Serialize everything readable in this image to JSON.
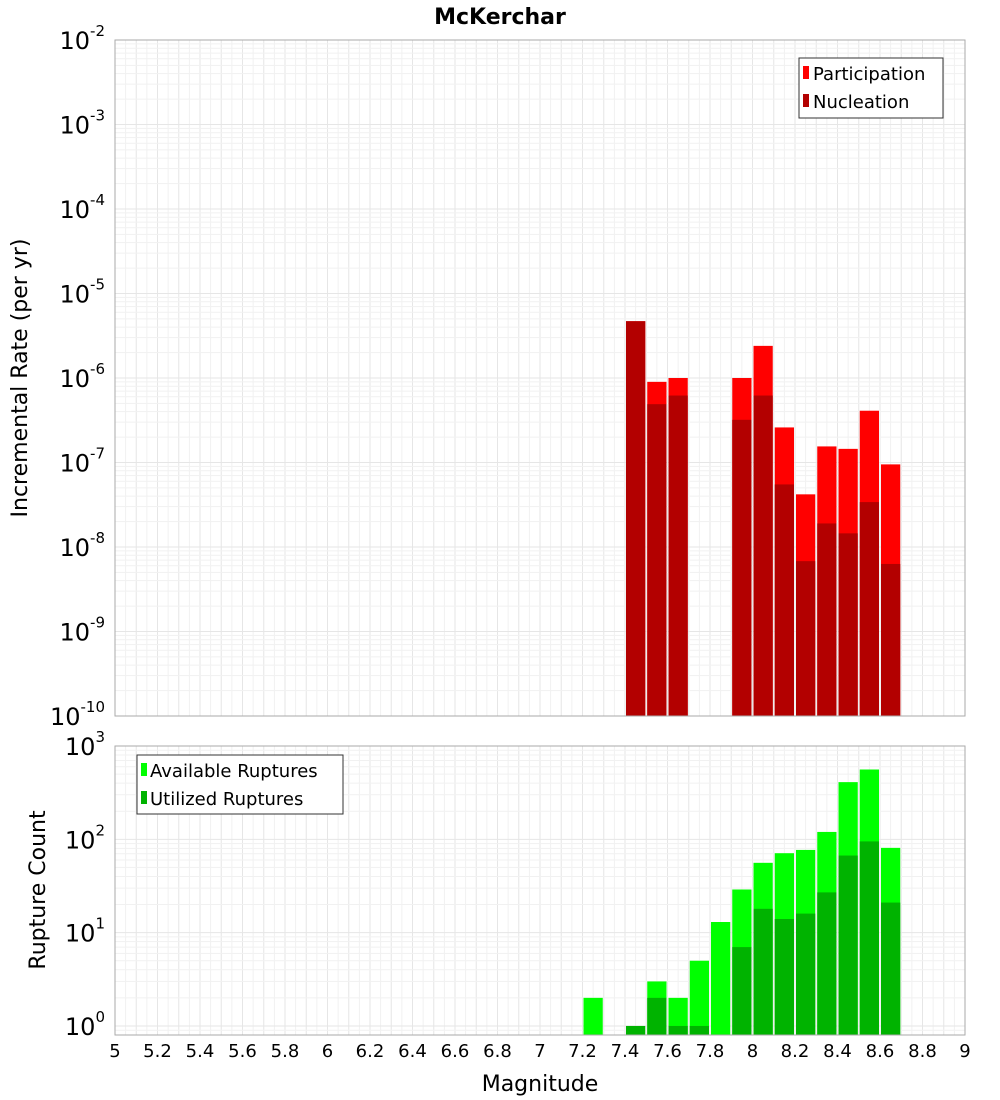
{
  "colors": {
    "participation": "#ff0000",
    "nucleation": "#b30000",
    "available": "#00ff00",
    "utilized": "#00b300"
  },
  "chart_data": [
    {
      "type": "bar",
      "title": "McKerchar",
      "xlabel": "",
      "ylabel": "Incremental Rate (per yr)",
      "yscale": "log",
      "xlim": [
        5,
        9
      ],
      "ylim": [
        1e-10,
        0.01
      ],
      "y_tick_exponents": [
        -10,
        -9,
        -8,
        -7,
        -6,
        -5,
        -4,
        -3,
        -2
      ],
      "grid": true,
      "legend_position": "top-right",
      "x": [
        7.45,
        7.55,
        7.65,
        7.95,
        8.05,
        8.15,
        8.25,
        8.35,
        8.45,
        8.55,
        8.65
      ],
      "series": [
        {
          "name": "Participation",
          "color_key": "participation",
          "values": [
            4.7e-06,
            9e-07,
            1e-06,
            1e-06,
            2.4e-06,
            2.6e-07,
            4.2e-08,
            1.55e-07,
            1.45e-07,
            4.1e-07,
            9.5e-08
          ]
        },
        {
          "name": "Nucleation",
          "color_key": "nucleation",
          "values": [
            4.7e-06,
            4.9e-07,
            6.2e-07,
            3.2e-07,
            6.2e-07,
            5.5e-08,
            6.8e-09,
            1.9e-08,
            1.45e-08,
            3.4e-08,
            6.3e-09
          ]
        }
      ]
    },
    {
      "type": "bar",
      "xlabel": "Magnitude",
      "ylabel": "Rupture Count",
      "yscale": "log",
      "xlim": [
        5,
        9
      ],
      "ylim": [
        0.8,
        1000
      ],
      "y_tick_exponents": [
        0,
        1,
        2,
        3
      ],
      "x_ticks": [
        "5",
        "5.2",
        "5.4",
        "5.6",
        "5.8",
        "6",
        "6.2",
        "6.4",
        "6.6",
        "6.8",
        "7",
        "7.2",
        "7.4",
        "7.6",
        "7.8",
        "8",
        "8.2",
        "8.4",
        "8.6",
        "8.8",
        "9"
      ],
      "grid": true,
      "legend_position": "top-left",
      "x": [
        7.25,
        7.45,
        7.55,
        7.65,
        7.75,
        7.85,
        7.95,
        8.05,
        8.15,
        8.25,
        8.35,
        8.45,
        8.55,
        8.65
      ],
      "series": [
        {
          "name": "Available Ruptures",
          "color_key": "available",
          "values": [
            2,
            0,
            3,
            2,
            5,
            13,
            29,
            56,
            71,
            77,
            120,
            410,
            560,
            81
          ]
        },
        {
          "name": "Utilized Ruptures",
          "color_key": "utilized",
          "values": [
            0,
            1,
            2,
            1,
            1,
            0,
            7,
            18,
            14,
            16,
            27,
            67,
            95,
            21
          ]
        }
      ]
    }
  ]
}
